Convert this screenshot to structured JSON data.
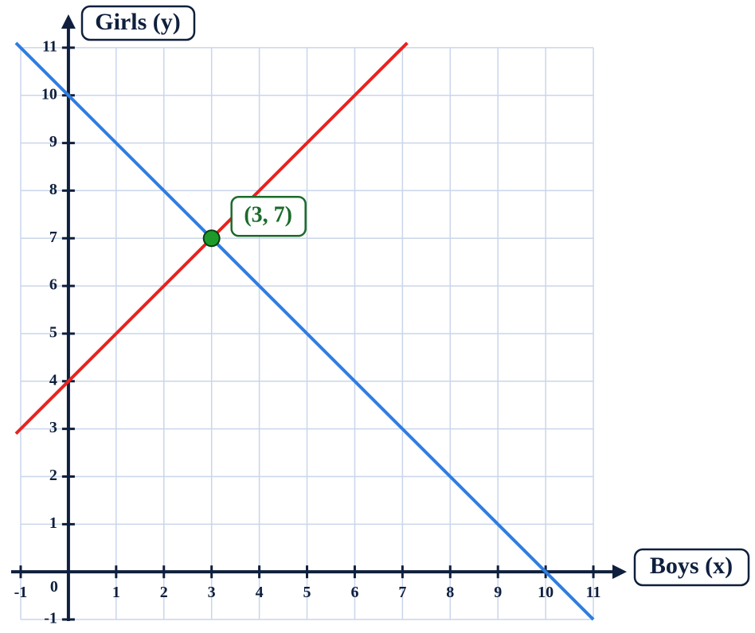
{
  "chart_data": {
    "type": "line",
    "x_label": "Boys (x)",
    "y_label": "Girls (y)",
    "series": [
      {
        "name": "Red line",
        "color": "#e8231f",
        "x": [
          -1.1,
          7.1
        ],
        "values": [
          2.9,
          11.1
        ]
      },
      {
        "name": "Blue line",
        "color": "#2f7de1",
        "x": [
          -1.1,
          11
        ],
        "values": [
          11.1,
          -1
        ]
      }
    ],
    "annotations": [
      {
        "text": "(3, 7)",
        "x": 3,
        "y": 7,
        "color": "#1e9a2a"
      }
    ],
    "xlim": [
      -1.2,
      11.7
    ],
    "ylim": [
      -1.2,
      11.7
    ],
    "xticks": [
      -1,
      0,
      1,
      2,
      3,
      4,
      5,
      6,
      7,
      8,
      9,
      10,
      11
    ],
    "yticks": [
      -1,
      1,
      2,
      3,
      4,
      5,
      6,
      7,
      8,
      9,
      10,
      11
    ],
    "grid": true
  }
}
